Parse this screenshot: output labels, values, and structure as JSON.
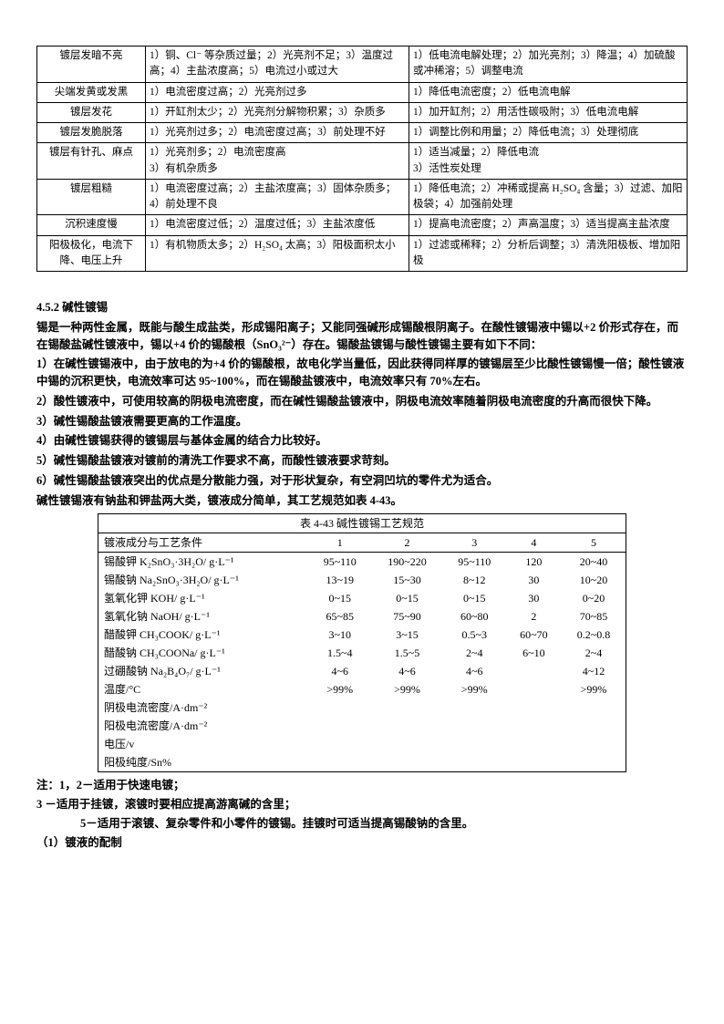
{
  "table1": {
    "rows": [
      {
        "c1": "镀层发暗不亮",
        "c2": "1）铜、Cl⁻ 等杂质过量；2）光亮剂不足；3）温度过高；4）主盐浓度高；5）电流过小或过大",
        "c3": "1）低电流电解处理；2）加光亮剂；3）降温；4）加硫酸或冲稀溶；5）调整电流"
      },
      {
        "c1": "尖端发黄或发黑",
        "c2": "1）电流密度过高；2）光亮剂过多",
        "c3": "1）降低电流密度；2）低电流电解"
      },
      {
        "c1": "镀层发花",
        "c2": "1）开缸剂太少；2）光亮剂分解物积累；3）杂质多",
        "c3": "1）加开缸剂；2）用活性碳吸附；3）低电流电解"
      },
      {
        "c1": "镀层发脆脱落",
        "c2": "1）光亮剂过多；2）电流密度过高；3）前处理不好",
        "c3": "1）调整比例和用量；2）降低电流；3）处理彻底"
      },
      {
        "c1": "镀层有针孔、麻点",
        "c2": "1）光亮剂多；2）电流密度高\n3）有机杂质多",
        "c3": "1）适当减量；2）降低电流\n3）活性炭处理"
      },
      {
        "c1": "镀层粗糙",
        "c2": "1）电流密度过高；2）主盐浓度高；3）固体杂质多；4）前处理不良",
        "c3": "1）降低电流；2）冲稀或提高 H₂SO₄ 含量；3）过滤、加阳极袋；4）加强前处理"
      },
      {
        "c1": "沉积速度慢",
        "c2": "1）电流密度过低；2）温度过低；3）主盐浓度低",
        "c3": "1）提高电流密度；2）声高温度；3）适当提高主盐浓度"
      },
      {
        "c1": "阳极极化，电流下降、电压上升",
        "c2": "1）有机物质太多；2）H₂SO₄ 太高；3）阳极面积太小",
        "c3": "1）过滤或稀释；2）分析后调整；3）清洗阳极板、增加阳极"
      }
    ]
  },
  "section": {
    "heading": "4.5.2 碱性镀锡",
    "p0": "锡是一种两性金属，既能与酸生成盐类，形成锡阳离子；又能同强碱形成锡酸根阴离子。在酸性镀锡液中锡以+2 价形式存在，而在锡酸盐碱性镀液中，锡以+4 价的锡酸根（SnO₃²⁻）存在。锡酸盐镀锡与酸性镀锡主要有如下不同：",
    "p1": "1）在碱性镀锡液中，由于放电的为+4 价的锡酸根，故电化学当量低，因此获得同样厚的镀锡层至少比酸性镀锡慢一倍；酸性镀液中锡的沉积更快，电流效率可达 95~100%，而在锡酸盐镀液中，电流效率只有 70%左右。",
    "p2": "2）酸性镀液中，可使用较高的阴极电流密度，而在碱性锡酸盐镀液中，阴极电流效率随着阴极电流密度的升高而很快下降。",
    "p3": "3）碱性锡酸盐镀液需要更高的工作温度。",
    "p4": "4）由碱性镀锡获得的镀锡层与基体金属的结合力比较好。",
    "p5": "5）碱性锡酸盐镀液对镀前的清洗工作要求不高，而酸性镀液要求苛刻。",
    "p6": "6）碱性锡酸盐镀液突出的优点是分散能力强，对于形状复杂，有空洞凹坑的零件尤为适合。",
    "p7": "碱性镀锡液有钠盐和钾盐两大类，镀液成分简单，其工艺规范如表 4-43。"
  },
  "table2": {
    "caption": "表 4-43 碱性镀锡工艺规范",
    "header": [
      "镀液成分与工艺条件",
      "1",
      "2",
      "3",
      "4",
      "5"
    ],
    "rows": [
      [
        "锡酸钾 K₂SnO₃·3H₂O/ g·L⁻¹",
        "95~110",
        "190~220",
        "95~110",
        "120",
        "20~40"
      ],
      [
        "锡酸钠 Na₂SnO₃·3H₂O/ g·L⁻¹",
        "13~19",
        "15~30",
        "8~12",
        "30",
        "10~20"
      ],
      [
        "氢氧化钾 KOH/ g·L⁻¹",
        "0~15",
        "0~15",
        "0~15",
        "30",
        "0~20"
      ],
      [
        "氢氧化钠 NaOH/ g·L⁻¹",
        "65~85",
        "75~90",
        "60~80",
        "2",
        "70~85"
      ],
      [
        "醋酸钾 CH₃COOK/ g·L⁻¹",
        "3~10",
        "3~15",
        "0.5~3",
        "60~70",
        "0.2~0.8"
      ],
      [
        "醋酸钠 CH₃COONa/ g·L⁻¹",
        "1.5~4",
        "1.5~5",
        "2~4",
        "6~10",
        "2~4"
      ],
      [
        "过硼酸钠 Na₂B₄O₇/ g·L⁻¹",
        "4~6",
        "4~6",
        "4~6",
        "",
        "4~12"
      ],
      [
        "温度/°C",
        ">99%",
        ">99%",
        ">99%",
        "",
        ">99%"
      ],
      [
        "阴极电流密度/A·dm⁻²",
        "",
        "",
        "",
        "",
        ""
      ],
      [
        "阳极电流密度/A·dm⁻²",
        "",
        "",
        "",
        "",
        ""
      ],
      [
        "电压/v",
        "",
        "",
        "",
        "",
        ""
      ],
      [
        "阳极纯度/Sn%",
        "",
        "",
        "",
        "",
        ""
      ]
    ]
  },
  "notes": {
    "n1": "注：1，2－适用于快速电镀；",
    "n2": "3 －适用于挂镀，滚镀时要相应提高游离碱的含里；",
    "n3": "5－适用于滚镀、复杂零件和小零件的镀锡。挂镀时可适当提高锡酸钠的含里。",
    "n4": "（1）镀液的配制"
  }
}
